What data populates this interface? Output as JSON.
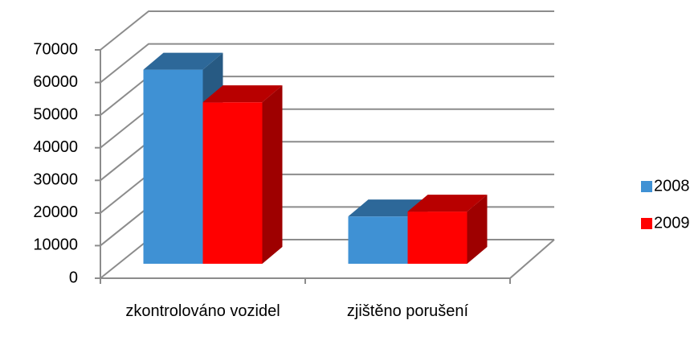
{
  "chart_data": {
    "type": "bar3d",
    "categories": [
      "zkontrolováno vozidel",
      "zjištěno porušení"
    ],
    "series": [
      {
        "name": "2008",
        "color": "#3f91d4",
        "values": [
          59500,
          14500
        ]
      },
      {
        "name": "2009",
        "color": "#ff0000",
        "values": [
          49500,
          16000
        ]
      }
    ],
    "ylim": [
      0,
      70000
    ],
    "yticks": [
      0,
      10000,
      20000,
      30000,
      40000,
      50000,
      60000,
      70000
    ],
    "grid": true,
    "legend": "right"
  }
}
